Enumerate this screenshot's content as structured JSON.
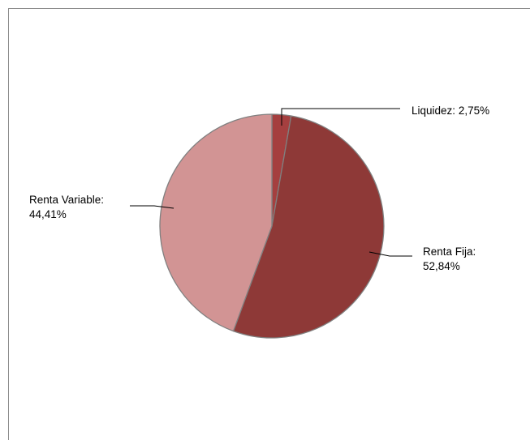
{
  "chart_data": {
    "type": "pie",
    "title": "",
    "legend": "none",
    "slices": [
      {
        "category": "Liquidez",
        "value": 2.75,
        "label_name": "Liquidez:",
        "label_value": "2,75%",
        "color": "#a53f3f"
      },
      {
        "category": "Renta Fija",
        "value": 52.84,
        "label_name": "Renta Fija:",
        "label_value": "52,84%",
        "color": "#8e3937"
      },
      {
        "category": "Renta Variable",
        "value": 44.41,
        "label_name": "Renta Variable:",
        "label_value": "44,41%",
        "color": "#d29494"
      }
    ],
    "slice_border_color": "#808080",
    "leader_line_color": "#000000"
  }
}
